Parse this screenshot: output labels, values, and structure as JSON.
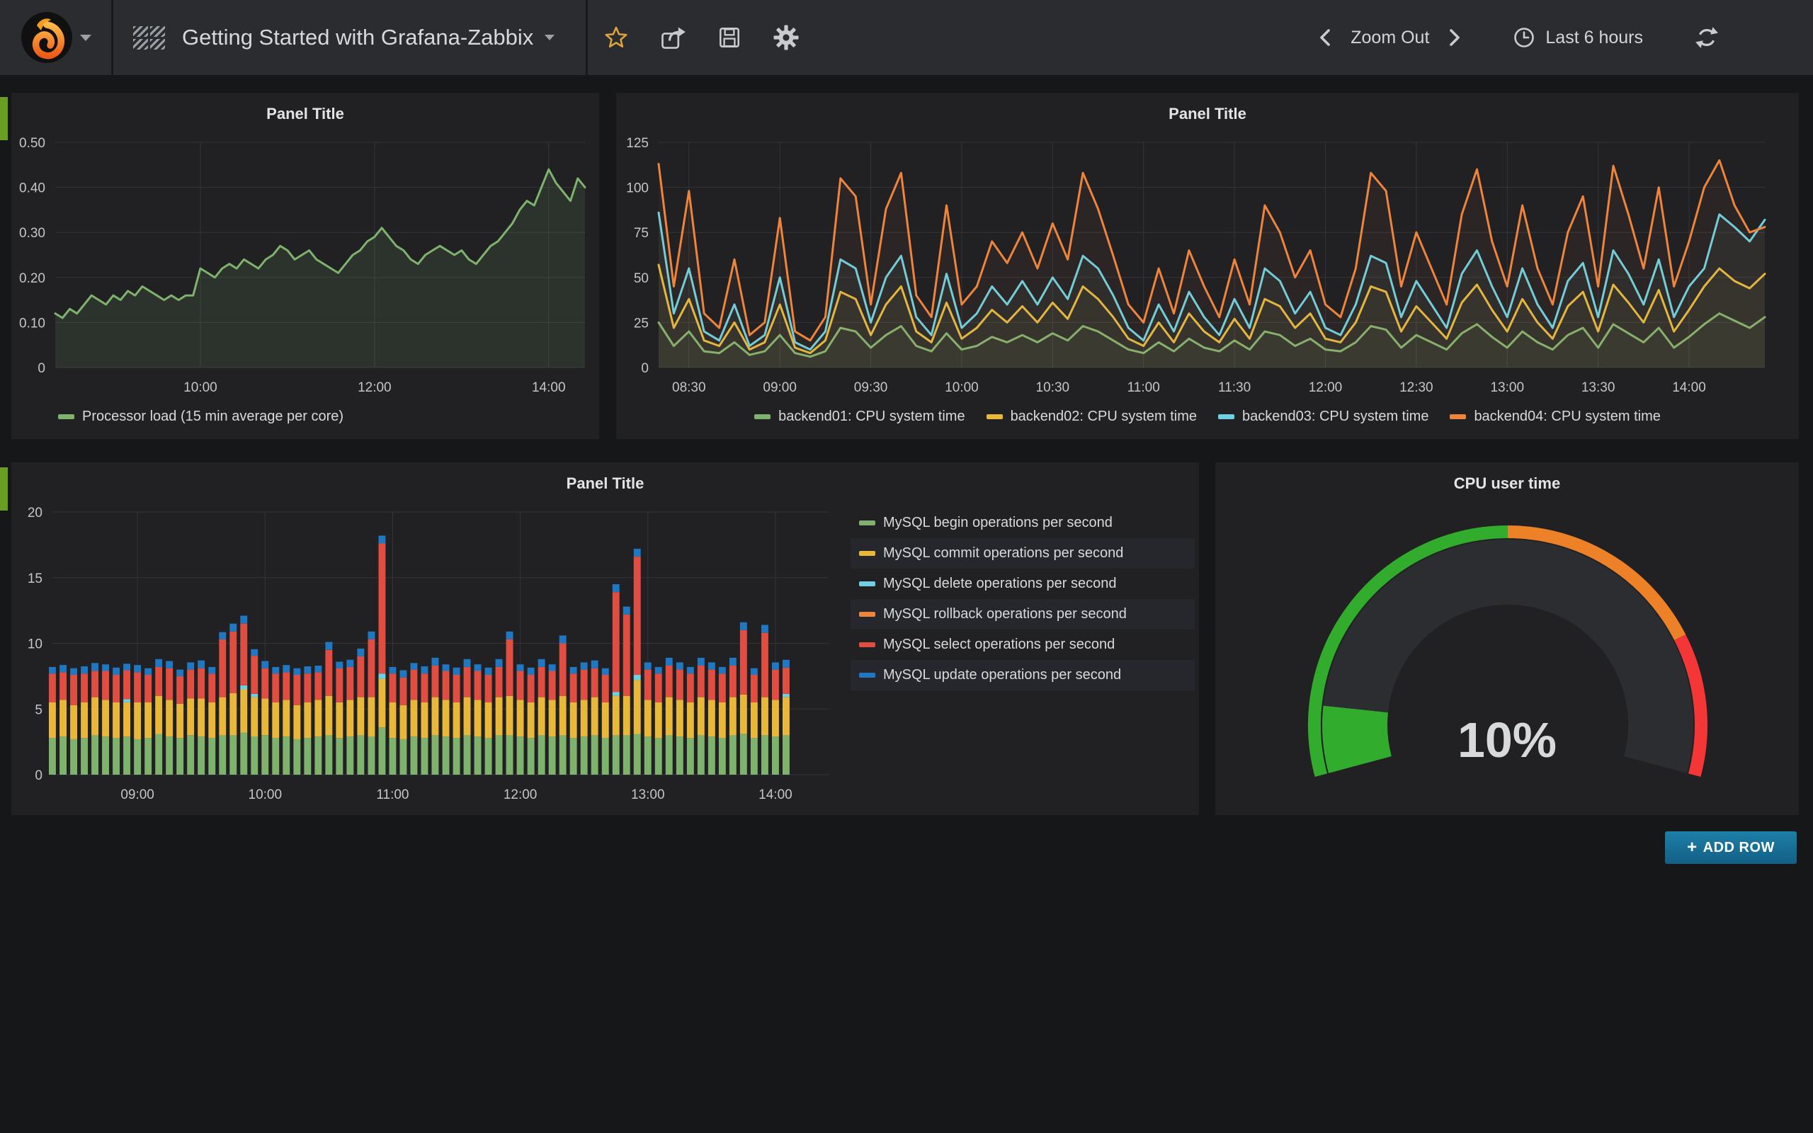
{
  "navbar": {
    "dashboard_title": "Getting Started with Grafana-Zabbix",
    "zoom_out": "Zoom Out",
    "time_range": "Last 6 hours"
  },
  "buttons": {
    "add_row": "ADD ROW",
    "add_row_plus": "+"
  },
  "chart_data": [
    {
      "id": "processor-load",
      "type": "line",
      "title": "Panel Title",
      "x_range_min": [
        500,
        865
      ],
      "x_ticks": [
        {
          "min": 600,
          "label": "10:00"
        },
        {
          "min": 720,
          "label": "12:00"
        },
        {
          "min": 840,
          "label": "14:00"
        }
      ],
      "y_ticks": [
        {
          "v": 0,
          "label": "0"
        },
        {
          "v": 0.1,
          "label": "0.10"
        },
        {
          "v": 0.2,
          "label": "0.20"
        },
        {
          "v": 0.3,
          "label": "0.30"
        },
        {
          "v": 0.4,
          "label": "0.40"
        },
        {
          "v": 0.5,
          "label": "0.50"
        }
      ],
      "y_max": 0.5,
      "series": [
        {
          "name": "Processor load (15 min average per core)",
          "color": "#7EB26D",
          "fill_opacity": 0.12,
          "start_min": 500,
          "step_min": 5,
          "values": [
            0.12,
            0.11,
            0.13,
            0.12,
            0.14,
            0.16,
            0.15,
            0.14,
            0.16,
            0.15,
            0.17,
            0.16,
            0.18,
            0.17,
            0.16,
            0.15,
            0.16,
            0.15,
            0.16,
            0.16,
            0.22,
            0.21,
            0.2,
            0.22,
            0.23,
            0.22,
            0.24,
            0.23,
            0.22,
            0.24,
            0.25,
            0.27,
            0.26,
            0.24,
            0.25,
            0.26,
            0.24,
            0.23,
            0.22,
            0.21,
            0.23,
            0.25,
            0.26,
            0.28,
            0.29,
            0.31,
            0.29,
            0.27,
            0.26,
            0.24,
            0.23,
            0.25,
            0.26,
            0.27,
            0.26,
            0.25,
            0.26,
            0.24,
            0.23,
            0.25,
            0.27,
            0.28,
            0.3,
            0.32,
            0.35,
            0.37,
            0.36,
            0.4,
            0.44,
            0.41,
            0.39,
            0.37,
            0.42,
            0.4
          ]
        }
      ]
    },
    {
      "id": "cpu-system-time",
      "type": "line",
      "title": "Panel Title",
      "x_range_min": [
        500,
        865
      ],
      "x_ticks": [
        {
          "min": 510,
          "label": "08:30"
        },
        {
          "min": 540,
          "label": "09:00"
        },
        {
          "min": 570,
          "label": "09:30"
        },
        {
          "min": 600,
          "label": "10:00"
        },
        {
          "min": 630,
          "label": "10:30"
        },
        {
          "min": 660,
          "label": "11:00"
        },
        {
          "min": 690,
          "label": "11:30"
        },
        {
          "min": 720,
          "label": "12:00"
        },
        {
          "min": 750,
          "label": "12:30"
        },
        {
          "min": 780,
          "label": "13:00"
        },
        {
          "min": 810,
          "label": "13:30"
        },
        {
          "min": 840,
          "label": "14:00"
        }
      ],
      "y_ticks": [
        {
          "v": 0,
          "label": "0"
        },
        {
          "v": 25,
          "label": "25"
        },
        {
          "v": 50,
          "label": "50"
        },
        {
          "v": 75,
          "label": "75"
        },
        {
          "v": 100,
          "label": "100"
        },
        {
          "v": 125,
          "label": "125"
        }
      ],
      "y_max": 125,
      "series": [
        {
          "name": "backend01: CPU system time",
          "color": "#7EB26D",
          "fill_opacity": 0.05,
          "start_min": 500,
          "step_min": 5,
          "values": [
            25,
            12,
            20,
            9,
            8,
            14,
            7,
            9,
            18,
            8,
            6,
            9,
            22,
            20,
            11,
            18,
            23,
            12,
            9,
            19,
            10,
            12,
            17,
            14,
            18,
            14,
            19,
            15,
            23,
            20,
            15,
            10,
            8,
            14,
            9,
            16,
            11,
            9,
            15,
            10,
            20,
            18,
            12,
            16,
            10,
            9,
            14,
            23,
            21,
            11,
            18,
            14,
            10,
            19,
            24,
            17,
            11,
            20,
            14,
            10,
            18,
            22,
            11,
            24,
            19,
            14,
            22,
            11,
            17,
            24,
            30,
            26,
            22,
            28
          ]
        },
        {
          "name": "backend02: CPU system time",
          "color": "#EAB839",
          "fill_opacity": 0.05,
          "start_min": 500,
          "step_min": 5,
          "values": [
            57,
            22,
            38,
            15,
            12,
            25,
            10,
            14,
            35,
            11,
            8,
            15,
            42,
            38,
            18,
            35,
            45,
            20,
            14,
            36,
            16,
            22,
            32,
            25,
            34,
            25,
            36,
            27,
            45,
            38,
            28,
            16,
            12,
            25,
            14,
            30,
            20,
            14,
            27,
            16,
            38,
            34,
            22,
            30,
            16,
            14,
            25,
            45,
            42,
            20,
            34,
            25,
            16,
            36,
            46,
            32,
            20,
            38,
            25,
            16,
            34,
            42,
            20,
            46,
            36,
            25,
            43,
            20,
            32,
            45,
            55,
            48,
            44,
            52
          ]
        },
        {
          "name": "backend03: CPU system time",
          "color": "#6ED0E0",
          "fill_opacity": 0.05,
          "start_min": 500,
          "step_min": 5,
          "values": [
            86,
            30,
            55,
            20,
            15,
            35,
            12,
            18,
            50,
            14,
            10,
            20,
            60,
            55,
            25,
            50,
            62,
            28,
            18,
            52,
            22,
            30,
            45,
            35,
            48,
            35,
            50,
            38,
            62,
            55,
            40,
            22,
            15,
            35,
            20,
            42,
            28,
            18,
            38,
            22,
            55,
            48,
            30,
            42,
            22,
            18,
            35,
            62,
            58,
            28,
            48,
            35,
            22,
            52,
            65,
            45,
            28,
            55,
            35,
            22,
            48,
            58,
            28,
            65,
            52,
            35,
            60,
            28,
            45,
            55,
            85,
            78,
            70,
            82
          ]
        },
        {
          "name": "backend04: CPU system time",
          "color": "#EF843C",
          "fill_opacity": 0.05,
          "start_min": 500,
          "step_min": 5,
          "values": [
            113,
            45,
            98,
            30,
            22,
            60,
            18,
            25,
            83,
            20,
            15,
            28,
            105,
            95,
            35,
            88,
            108,
            40,
            28,
            90,
            35,
            45,
            70,
            58,
            75,
            55,
            80,
            60,
            108,
            88,
            62,
            35,
            25,
            55,
            30,
            65,
            45,
            28,
            60,
            35,
            90,
            75,
            50,
            65,
            35,
            28,
            55,
            108,
            98,
            45,
            75,
            55,
            35,
            85,
            110,
            70,
            45,
            90,
            55,
            35,
            75,
            95,
            45,
            112,
            85,
            55,
            100,
            45,
            70,
            100,
            115,
            90,
            75,
            78
          ]
        }
      ]
    },
    {
      "id": "mysql-operations",
      "type": "bar_stacked",
      "title": "Panel Title",
      "x_range_min": [
        500,
        865
      ],
      "bar_start_min": 500,
      "bar_step_min": 5,
      "x_ticks": [
        {
          "min": 540,
          "label": "09:00"
        },
        {
          "min": 600,
          "label": "10:00"
        },
        {
          "min": 660,
          "label": "11:00"
        },
        {
          "min": 720,
          "label": "12:00"
        },
        {
          "min": 780,
          "label": "13:00"
        },
        {
          "min": 840,
          "label": "14:00"
        }
      ],
      "y_ticks": [
        {
          "v": 0,
          "label": "0"
        },
        {
          "v": 5,
          "label": "5"
        },
        {
          "v": 10,
          "label": "10"
        },
        {
          "v": 15,
          "label": "15"
        },
        {
          "v": 20,
          "label": "20"
        }
      ],
      "y_max": 20,
      "series": [
        {
          "name": "MySQL begin operations per second",
          "color": "#7EB26D",
          "values": [
            2.8,
            2.9,
            2.7,
            2.8,
            3.0,
            2.9,
            2.8,
            2.9,
            2.7,
            2.8,
            3.1,
            2.9,
            2.8,
            3.0,
            2.9,
            2.8,
            3.0,
            3.0,
            3.2,
            2.9,
            3.0,
            2.8,
            2.9,
            2.7,
            2.8,
            2.9,
            3.0,
            2.8,
            2.9,
            3.0,
            2.9,
            3.6,
            2.8,
            2.7,
            2.9,
            2.8,
            3.0,
            2.9,
            2.8,
            3.0,
            2.9,
            2.8,
            3.0,
            3.0,
            2.9,
            2.8,
            3.0,
            2.9,
            3.0,
            2.8,
            2.9,
            3.0,
            2.8,
            3.0,
            3.0,
            3.1,
            2.9,
            2.8,
            3.0,
            2.9,
            2.8,
            3.0,
            2.9,
            2.8,
            3.0,
            3.1,
            2.8,
            3.0,
            2.9,
            3.0
          ]
        },
        {
          "name": "MySQL commit operations per second",
          "color": "#EAB839",
          "values": [
            2.7,
            2.8,
            2.6,
            2.7,
            2.9,
            2.8,
            2.7,
            2.6,
            2.8,
            2.7,
            2.9,
            2.8,
            2.6,
            2.8,
            2.9,
            2.7,
            2.9,
            3.2,
            3.3,
            3.0,
            2.8,
            2.7,
            2.8,
            2.6,
            2.7,
            2.8,
            3.0,
            2.7,
            2.8,
            2.9,
            3.0,
            3.7,
            2.7,
            2.6,
            2.8,
            2.7,
            2.9,
            2.8,
            2.7,
            2.9,
            2.8,
            2.7,
            2.9,
            3.0,
            2.8,
            2.7,
            2.9,
            2.8,
            3.0,
            2.7,
            2.8,
            2.9,
            2.7,
            3.0,
            3.0,
            4.1,
            2.8,
            2.7,
            2.9,
            2.8,
            2.7,
            2.9,
            2.8,
            2.7,
            2.9,
            3.0,
            2.7,
            2.9,
            2.8,
            2.9
          ]
        },
        {
          "name": "MySQL delete operations per second",
          "color": "#6ED0E0",
          "values": [
            0,
            0,
            0,
            0,
            0,
            0,
            0,
            0.25,
            0,
            0,
            0,
            0,
            0,
            0,
            0,
            0,
            0,
            0,
            0.3,
            0.25,
            0,
            0,
            0,
            0,
            0,
            0,
            0,
            0,
            0,
            0,
            0,
            0.4,
            0,
            0,
            0,
            0,
            0,
            0,
            0,
            0,
            0,
            0,
            0,
            0,
            0,
            0,
            0,
            0,
            0,
            0,
            0,
            0,
            0,
            0.3,
            0,
            0.4,
            0,
            0,
            0,
            0,
            0,
            0,
            0,
            0,
            0,
            0,
            0,
            0,
            0,
            0.25
          ]
        },
        {
          "name": "MySQL rollback operations per second",
          "color": "#EF843C",
          "values": [
            0,
            0,
            0,
            0,
            0,
            0,
            0,
            0,
            0,
            0,
            0,
            0,
            0,
            0,
            0,
            0,
            0,
            0,
            0,
            0,
            0,
            0,
            0,
            0,
            0,
            0,
            0,
            0,
            0,
            0,
            0,
            0,
            0,
            0,
            0,
            0,
            0,
            0,
            0,
            0,
            0,
            0,
            0,
            0,
            0,
            0,
            0,
            0,
            0,
            0,
            0,
            0,
            0,
            0,
            0,
            0,
            0,
            0,
            0,
            0,
            0,
            0,
            0,
            0,
            0,
            0,
            0,
            0,
            0,
            0
          ]
        },
        {
          "name": "MySQL select operations per second",
          "color": "#E24D42",
          "values": [
            2.2,
            2.1,
            2.3,
            2.2,
            2.0,
            2.2,
            2.1,
            2.2,
            2.3,
            2.1,
            2.2,
            2.4,
            2.1,
            2.2,
            2.3,
            2.2,
            4.4,
            4.7,
            4.7,
            2.9,
            2.3,
            2.2,
            2.1,
            2.3,
            2.2,
            2.1,
            3.5,
            2.6,
            2.5,
            3.1,
            4.4,
            9.9,
            2.2,
            2.1,
            2.3,
            2.2,
            2.4,
            2.2,
            2.1,
            2.3,
            2.2,
            2.1,
            2.3,
            4.3,
            2.2,
            2.1,
            2.3,
            2.2,
            4.0,
            2.2,
            2.3,
            2.2,
            2.1,
            7.6,
            6.2,
            9.0,
            2.3,
            2.2,
            2.4,
            2.3,
            2.2,
            2.4,
            2.3,
            2.2,
            2.4,
            4.9,
            2.1,
            4.9,
            2.3,
            2.0
          ]
        },
        {
          "name": "MySQL update operations per second",
          "color": "#1F78C1",
          "values": [
            0.5,
            0.55,
            0.5,
            0.55,
            0.6,
            0.5,
            0.55,
            0.5,
            0.55,
            0.5,
            0.6,
            0.55,
            0.5,
            0.55,
            0.6,
            0.5,
            0.55,
            0.6,
            0.6,
            0.5,
            0.55,
            0.5,
            0.55,
            0.5,
            0.55,
            0.5,
            0.6,
            0.5,
            0.55,
            0.6,
            0.6,
            0.6,
            0.5,
            0.55,
            0.5,
            0.55,
            0.6,
            0.5,
            0.55,
            0.6,
            0.5,
            0.55,
            0.6,
            0.6,
            0.5,
            0.55,
            0.6,
            0.5,
            0.6,
            0.5,
            0.55,
            0.6,
            0.5,
            0.6,
            0.6,
            0.6,
            0.55,
            0.5,
            0.6,
            0.55,
            0.5,
            0.6,
            0.55,
            0.5,
            0.6,
            0.6,
            0.5,
            0.6,
            0.55,
            0.6
          ]
        }
      ]
    },
    {
      "id": "cpu-user-time",
      "type": "gauge",
      "title": "CPU user time",
      "value": 10,
      "display": "10%",
      "min": 0,
      "max": 100,
      "thresholds": [
        {
          "upto": 50,
          "color": "#32AC2D"
        },
        {
          "upto": 80,
          "color": "#ED8128"
        },
        {
          "upto": 100,
          "color": "#F53636"
        }
      ],
      "value_color": "#32AC2D"
    }
  ]
}
